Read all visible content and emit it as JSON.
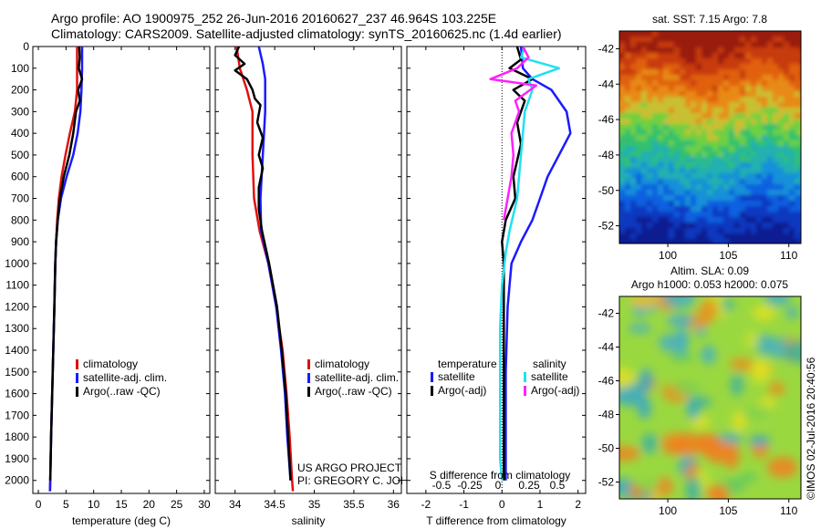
{
  "header": {
    "line1": "Argo profile: AO 1900975_252 26-Jun-2016 20160627_237 46.964S 103.225E",
    "line2": "Climatology: CARS2009. Satellite-adjusted climatology: synTS_20160625.nc (1.4d earlier)"
  },
  "colors": {
    "climatology": "#e01010",
    "satellite": "#1a1aff",
    "argo": "#000000",
    "salinity_sat": "#20e0f0",
    "salinity_argo": "#ff20ff"
  },
  "chart_data": [
    {
      "type": "line",
      "panel": "temperature",
      "xlabel": "temperature (deg C)",
      "xticks": [
        0,
        5,
        10,
        15,
        20,
        25,
        30
      ],
      "xlim": [
        -1,
        31
      ],
      "ylim": [
        2060,
        0
      ],
      "yticks": [
        0,
        100,
        200,
        300,
        400,
        500,
        600,
        700,
        800,
        900,
        1000,
        1100,
        1200,
        1300,
        1400,
        1500,
        1600,
        1700,
        1800,
        1900,
        2000
      ],
      "legend": [
        "climatology",
        "satellite-adj. clim.",
        "Argo(..raw -QC)"
      ],
      "series": [
        {
          "name": "climatology",
          "color": "#e01010",
          "points": [
            [
              7.0,
              0
            ],
            [
              7.0,
              100
            ],
            [
              7.0,
              200
            ],
            [
              6.6,
              300
            ],
            [
              5.7,
              400
            ],
            [
              4.9,
              500
            ],
            [
              4.2,
              600
            ],
            [
              3.7,
              700
            ],
            [
              3.4,
              800
            ],
            [
              3.2,
              900
            ],
            [
              3.05,
              1000
            ],
            [
              2.9,
              1200
            ],
            [
              2.7,
              1400
            ],
            [
              2.5,
              1600
            ],
            [
              2.3,
              1800
            ],
            [
              2.15,
              2000
            ],
            [
              2.1,
              2050
            ]
          ]
        },
        {
          "name": "satellite-adj. clim.",
          "color": "#1a1aff",
          "points": [
            [
              7.9,
              0
            ],
            [
              7.9,
              100
            ],
            [
              7.8,
              200
            ],
            [
              7.6,
              300
            ],
            [
              7.1,
              400
            ],
            [
              6.3,
              500
            ],
            [
              5.1,
              600
            ],
            [
              4.1,
              700
            ],
            [
              3.5,
              800
            ],
            [
              3.2,
              900
            ],
            [
              3.05,
              1000
            ],
            [
              2.9,
              1200
            ],
            [
              2.7,
              1400
            ],
            [
              2.5,
              1600
            ],
            [
              2.3,
              1800
            ],
            [
              2.15,
              2000
            ],
            [
              2.1,
              2050
            ]
          ]
        },
        {
          "name": "Argo(..raw -QC)",
          "color": "#000000",
          "points": [
            [
              7.4,
              0
            ],
            [
              7.5,
              50
            ],
            [
              7.3,
              100
            ],
            [
              7.9,
              150
            ],
            [
              7.2,
              200
            ],
            [
              7.5,
              250
            ],
            [
              6.8,
              300
            ],
            [
              6.3,
              400
            ],
            [
              5.6,
              500
            ],
            [
              4.6,
              600
            ],
            [
              3.9,
              700
            ],
            [
              3.5,
              800
            ],
            [
              3.2,
              900
            ],
            [
              3.05,
              1000
            ],
            [
              2.9,
              1200
            ],
            [
              2.7,
              1400
            ],
            [
              2.5,
              1600
            ],
            [
              2.3,
              1800
            ],
            [
              2.15,
              2000
            ]
          ]
        }
      ]
    },
    {
      "type": "line",
      "panel": "salinity",
      "xlabel": "salinity",
      "xticks": [
        34,
        34.5,
        35,
        35.5,
        36
      ],
      "xlim": [
        33.75,
        36.1
      ],
      "ylim": [
        2060,
        0
      ],
      "legend": [
        "climatology",
        "satellite-adj. clim.",
        "Argo(..raw -QC)"
      ],
      "annotation": [
        "US ARGO PROJECT",
        "PI: GREGORY C. JOHNSON"
      ],
      "series": [
        {
          "name": "climatology",
          "color": "#e01010",
          "points": [
            [
              34.02,
              0
            ],
            [
              34.06,
              100
            ],
            [
              34.15,
              200
            ],
            [
              34.22,
              300
            ],
            [
              34.22,
              500
            ],
            [
              34.24,
              700
            ],
            [
              34.31,
              850
            ],
            [
              34.42,
              1000
            ],
            [
              34.52,
              1200
            ],
            [
              34.6,
              1400
            ],
            [
              34.65,
              1600
            ],
            [
              34.69,
              1800
            ],
            [
              34.72,
              2000
            ],
            [
              34.73,
              2050
            ]
          ]
        },
        {
          "name": "satellite-adj. clim.",
          "color": "#1a1aff",
          "points": [
            [
              34.3,
              0
            ],
            [
              34.35,
              80
            ],
            [
              34.38,
              150
            ],
            [
              34.38,
              300
            ],
            [
              34.35,
              500
            ],
            [
              34.32,
              700
            ],
            [
              34.33,
              850
            ],
            [
              34.42,
              1000
            ],
            [
              34.52,
              1200
            ],
            [
              34.58,
              1400
            ],
            [
              34.63,
              1600
            ],
            [
              34.66,
              1800
            ],
            [
              34.7,
              2000
            ]
          ]
        },
        {
          "name": "Argo(..raw -QC)",
          "color": "#000000",
          "points": [
            [
              34.05,
              0
            ],
            [
              34.0,
              40
            ],
            [
              34.12,
              80
            ],
            [
              34.0,
              110
            ],
            [
              34.15,
              150
            ],
            [
              34.22,
              200
            ],
            [
              34.25,
              240
            ],
            [
              34.32,
              270
            ],
            [
              34.28,
              350
            ],
            [
              34.35,
              420
            ],
            [
              34.3,
              500
            ],
            [
              34.35,
              560
            ],
            [
              34.3,
              650
            ],
            [
              34.3,
              750
            ],
            [
              34.34,
              850
            ],
            [
              34.43,
              1000
            ],
            [
              34.53,
              1200
            ],
            [
              34.59,
              1400
            ],
            [
              34.64,
              1600
            ],
            [
              34.67,
              1800
            ],
            [
              34.7,
              2000
            ]
          ]
        }
      ]
    },
    {
      "type": "line",
      "panel": "difference",
      "xlabel": "T difference from climatology",
      "xlabel2": "S difference from climatology",
      "xticks": [
        -2,
        -1,
        0,
        1,
        2
      ],
      "xticks2": [
        "-0.5",
        "-0.25",
        "0",
        "0.25",
        "0.5"
      ],
      "xlim": [
        -2.5,
        2.2
      ],
      "ylim": [
        2060,
        0
      ],
      "legend_headers": [
        "temperature",
        "salinity"
      ],
      "legend": [
        "satellite",
        "Argo(-adj)",
        "satellite",
        "Argo(-adj)"
      ],
      "series": [
        {
          "name": "satellite",
          "color": "#1a1aff",
          "points": [
            [
              0.5,
              0
            ],
            [
              0.55,
              100
            ],
            [
              0.8,
              150
            ],
            [
              1.3,
              200
            ],
            [
              1.7,
              300
            ],
            [
              1.8,
              400
            ],
            [
              1.5,
              500
            ],
            [
              1.2,
              600
            ],
            [
              1.0,
              700
            ],
            [
              0.8,
              800
            ],
            [
              0.5,
              900
            ],
            [
              0.25,
              1000
            ],
            [
              0.15,
              1200
            ],
            [
              0.1,
              1500
            ],
            [
              0.1,
              1800
            ],
            [
              0.1,
              2000
            ]
          ]
        },
        {
          "name": "Argo(-adj)",
          "color": "#000000",
          "points": [
            [
              0.4,
              0
            ],
            [
              0.5,
              60
            ],
            [
              0.2,
              100
            ],
            [
              0.8,
              150
            ],
            [
              0.3,
              200
            ],
            [
              0.6,
              250
            ],
            [
              0.4,
              350
            ],
            [
              0.5,
              450
            ],
            [
              0.3,
              600
            ],
            [
              0.35,
              700
            ],
            [
              0.1,
              800
            ],
            [
              0.0,
              900
            ],
            [
              0.05,
              1000
            ],
            [
              0.05,
              1300
            ],
            [
              0.05,
              1600
            ],
            [
              0.05,
              2000
            ]
          ]
        },
        {
          "name": "satellite",
          "color": "#20e0f0",
          "points": [
            [
              0.6,
              0
            ],
            [
              0.5,
              50
            ],
            [
              1.5,
              100
            ],
            [
              0.7,
              150
            ],
            [
              0.8,
              200
            ],
            [
              0.6,
              300
            ],
            [
              0.5,
              500
            ],
            [
              0.4,
              700
            ],
            [
              0.2,
              850
            ],
            [
              0.1,
              950
            ],
            [
              0.0,
              1100
            ],
            [
              -0.05,
              1300
            ],
            [
              -0.05,
              1600
            ],
            [
              -0.05,
              1900
            ],
            [
              0.0,
              2000
            ]
          ]
        },
        {
          "name": "Argo(-adj)",
          "color": "#ff20ff",
          "points": [
            [
              0.55,
              0
            ],
            [
              0.7,
              50
            ],
            [
              0.4,
              100
            ],
            [
              -0.3,
              150
            ],
            [
              0.9,
              180
            ],
            [
              0.35,
              250
            ],
            [
              0.45,
              300
            ],
            [
              0.25,
              400
            ],
            [
              0.3,
              500
            ],
            [
              0.25,
              600
            ],
            [
              0.15,
              700
            ],
            [
              0.05,
              800
            ]
          ]
        }
      ]
    },
    {
      "type": "heatmap",
      "panel": "sst",
      "title": "sat. SST: 7.15 Argo: 7.8",
      "xticks": [
        100,
        105,
        110
      ],
      "yticks": [
        -42,
        -44,
        -46,
        -48,
        -50,
        -52
      ],
      "xlim": [
        96,
        111
      ],
      "ylim": [
        -53,
        -41
      ]
    },
    {
      "type": "heatmap",
      "panel": "sla",
      "title": "Altim. SLA: 0.09",
      "subtitle": "Argo h1000: 0.053 h2000: 0.075",
      "xticks": [
        100,
        105,
        110
      ],
      "yticks": [
        -42,
        -44,
        -46,
        -48,
        -50,
        -52
      ],
      "xlim": [
        96,
        111
      ],
      "ylim": [
        -53,
        -41
      ],
      "stamp": "©IMOS 02-Jul-2016 20:40:56"
    }
  ]
}
